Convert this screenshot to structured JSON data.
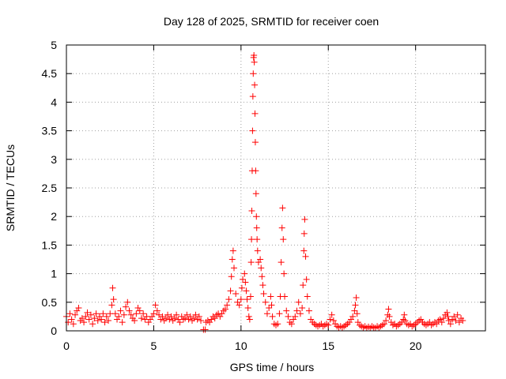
{
  "chart_data": {
    "type": "scatter",
    "title": "Day 128 of 2025, SRMTID for receiver coen",
    "xlabel": "GPS time / hours",
    "ylabel": "SRMTID / TECUs",
    "xlim": [
      0,
      24
    ],
    "ylim": [
      0,
      5
    ],
    "xticks": [
      0,
      5,
      10,
      15,
      20
    ],
    "xtick_labels": [
      "0",
      "5",
      "10",
      "15",
      "20"
    ],
    "yticks": [
      0,
      0.5,
      1,
      1.5,
      2,
      2.5,
      3,
      3.5,
      4,
      4.5,
      5
    ],
    "ytick_labels": [
      "0",
      "0.5",
      "1",
      "1.5",
      "2",
      "2.5",
      "3",
      "3.5",
      "4",
      "4.5",
      "5"
    ],
    "grid": true,
    "marker": "+",
    "series": [
      {
        "name": "SRMTID",
        "color": "#ff0000",
        "points": [
          [
            0.0,
            0.25
          ],
          [
            0.1,
            0.15
          ],
          [
            0.2,
            0.3
          ],
          [
            0.3,
            0.2
          ],
          [
            0.4,
            0.12
          ],
          [
            0.5,
            0.28
          ],
          [
            0.6,
            0.35
          ],
          [
            0.7,
            0.4
          ],
          [
            0.8,
            0.18
          ],
          [
            0.9,
            0.22
          ],
          [
            1.0,
            0.15
          ],
          [
            1.1,
            0.25
          ],
          [
            1.2,
            0.32
          ],
          [
            1.3,
            0.2
          ],
          [
            1.4,
            0.28
          ],
          [
            1.5,
            0.12
          ],
          [
            1.6,
            0.22
          ],
          [
            1.7,
            0.3
          ],
          [
            1.8,
            0.18
          ],
          [
            1.9,
            0.25
          ],
          [
            2.0,
            0.2
          ],
          [
            2.1,
            0.3
          ],
          [
            2.2,
            0.15
          ],
          [
            2.3,
            0.25
          ],
          [
            2.4,
            0.18
          ],
          [
            2.5,
            0.3
          ],
          [
            2.6,
            0.45
          ],
          [
            2.65,
            0.75
          ],
          [
            2.7,
            0.55
          ],
          [
            2.8,
            0.3
          ],
          [
            2.9,
            0.2
          ],
          [
            3.0,
            0.25
          ],
          [
            3.1,
            0.35
          ],
          [
            3.2,
            0.15
          ],
          [
            3.3,
            0.28
          ],
          [
            3.4,
            0.42
          ],
          [
            3.5,
            0.5
          ],
          [
            3.6,
            0.35
          ],
          [
            3.7,
            0.28
          ],
          [
            3.8,
            0.22
          ],
          [
            3.9,
            0.18
          ],
          [
            4.0,
            0.3
          ],
          [
            4.1,
            0.4
          ],
          [
            4.2,
            0.35
          ],
          [
            4.3,
            0.22
          ],
          [
            4.4,
            0.3
          ],
          [
            4.5,
            0.2
          ],
          [
            4.6,
            0.25
          ],
          [
            4.7,
            0.15
          ],
          [
            4.8,
            0.2
          ],
          [
            4.9,
            0.25
          ],
          [
            5.0,
            0.3
          ],
          [
            5.1,
            0.45
          ],
          [
            5.2,
            0.35
          ],
          [
            5.3,
            0.28
          ],
          [
            5.4,
            0.2
          ],
          [
            5.5,
            0.25
          ],
          [
            5.6,
            0.18
          ],
          [
            5.7,
            0.22
          ],
          [
            5.8,
            0.28
          ],
          [
            5.9,
            0.2
          ],
          [
            6.0,
            0.25
          ],
          [
            6.1,
            0.18
          ],
          [
            6.2,
            0.22
          ],
          [
            6.3,
            0.28
          ],
          [
            6.4,
            0.2
          ],
          [
            6.5,
            0.15
          ],
          [
            6.6,
            0.25
          ],
          [
            6.7,
            0.2
          ],
          [
            6.8,
            0.22
          ],
          [
            6.9,
            0.28
          ],
          [
            7.0,
            0.2
          ],
          [
            7.1,
            0.25
          ],
          [
            7.2,
            0.18
          ],
          [
            7.3,
            0.22
          ],
          [
            7.4,
            0.28
          ],
          [
            7.5,
            0.2
          ],
          [
            7.6,
            0.25
          ],
          [
            7.7,
            0.18
          ],
          [
            7.85,
            0.02
          ],
          [
            7.95,
            0.02
          ],
          [
            8.0,
            0.15
          ],
          [
            8.1,
            0.18
          ],
          [
            8.2,
            0.15
          ],
          [
            8.3,
            0.2
          ],
          [
            8.4,
            0.25
          ],
          [
            8.5,
            0.22
          ],
          [
            8.6,
            0.28
          ],
          [
            8.7,
            0.3
          ],
          [
            8.8,
            0.25
          ],
          [
            8.9,
            0.3
          ],
          [
            9.0,
            0.35
          ],
          [
            9.1,
            0.38
          ],
          [
            9.2,
            0.45
          ],
          [
            9.3,
            0.55
          ],
          [
            9.4,
            0.7
          ],
          [
            9.45,
            0.95
          ],
          [
            9.5,
            1.25
          ],
          [
            9.55,
            1.4
          ],
          [
            9.6,
            1.1
          ],
          [
            9.7,
            0.65
          ],
          [
            9.8,
            0.5
          ],
          [
            9.9,
            0.45
          ],
          [
            10.0,
            0.55
          ],
          [
            10.05,
            0.75
          ],
          [
            10.1,
            0.9
          ],
          [
            10.2,
            1.0
          ],
          [
            10.25,
            0.85
          ],
          [
            10.3,
            0.7
          ],
          [
            10.35,
            0.55
          ],
          [
            10.4,
            0.4
          ],
          [
            10.45,
            0.25
          ],
          [
            10.5,
            0.2
          ],
          [
            10.55,
            0.6
          ],
          [
            10.58,
            1.2
          ],
          [
            10.6,
            1.6
          ],
          [
            10.62,
            2.1
          ],
          [
            10.64,
            2.8
          ],
          [
            10.66,
            3.5
          ],
          [
            10.68,
            4.1
          ],
          [
            10.7,
            4.5
          ],
          [
            10.72,
            4.78
          ],
          [
            10.74,
            4.82
          ],
          [
            10.76,
            4.7
          ],
          [
            10.78,
            4.3
          ],
          [
            10.8,
            3.8
          ],
          [
            10.82,
            3.3
          ],
          [
            10.84,
            2.8
          ],
          [
            10.86,
            2.4
          ],
          [
            10.88,
            2.0
          ],
          [
            10.9,
            1.8
          ],
          [
            10.92,
            1.6
          ],
          [
            10.95,
            1.4
          ],
          [
            11.0,
            1.2
          ],
          [
            11.1,
            1.25
          ],
          [
            11.15,
            1.1
          ],
          [
            11.2,
            0.95
          ],
          [
            11.25,
            0.8
          ],
          [
            11.3,
            0.65
          ],
          [
            11.4,
            0.5
          ],
          [
            11.5,
            0.3
          ],
          [
            11.6,
            0.4
          ],
          [
            11.7,
            0.6
          ],
          [
            11.75,
            0.45
          ],
          [
            11.8,
            0.25
          ],
          [
            11.9,
            0.12
          ],
          [
            12.0,
            0.1
          ],
          [
            12.1,
            0.12
          ],
          [
            12.2,
            0.3
          ],
          [
            12.25,
            0.6
          ],
          [
            12.3,
            1.2
          ],
          [
            12.35,
            1.8
          ],
          [
            12.38,
            2.15
          ],
          [
            12.42,
            1.6
          ],
          [
            12.46,
            1.0
          ],
          [
            12.5,
            0.6
          ],
          [
            12.6,
            0.35
          ],
          [
            12.7,
            0.25
          ],
          [
            12.8,
            0.15
          ],
          [
            12.9,
            0.12
          ],
          [
            13.0,
            0.2
          ],
          [
            13.1,
            0.25
          ],
          [
            13.2,
            0.35
          ],
          [
            13.3,
            0.5
          ],
          [
            13.4,
            0.3
          ],
          [
            13.5,
            0.4
          ],
          [
            13.55,
            0.8
          ],
          [
            13.6,
            1.4
          ],
          [
            13.62,
            1.7
          ],
          [
            13.65,
            1.95
          ],
          [
            13.7,
            1.3
          ],
          [
            13.75,
            0.9
          ],
          [
            13.8,
            0.6
          ],
          [
            13.9,
            0.35
          ],
          [
            14.0,
            0.2
          ],
          [
            14.1,
            0.15
          ],
          [
            14.2,
            0.12
          ],
          [
            14.3,
            0.1
          ],
          [
            14.4,
            0.08
          ],
          [
            14.5,
            0.1
          ],
          [
            14.6,
            0.12
          ],
          [
            14.7,
            0.08
          ],
          [
            14.8,
            0.1
          ],
          [
            14.9,
            0.12
          ],
          [
            15.0,
            0.1
          ],
          [
            15.1,
            0.2
          ],
          [
            15.2,
            0.28
          ],
          [
            15.3,
            0.18
          ],
          [
            15.4,
            0.12
          ],
          [
            15.5,
            0.08
          ],
          [
            15.6,
            0.06
          ],
          [
            15.7,
            0.08
          ],
          [
            15.8,
            0.06
          ],
          [
            15.9,
            0.08
          ],
          [
            16.0,
            0.1
          ],
          [
            16.1,
            0.12
          ],
          [
            16.2,
            0.15
          ],
          [
            16.3,
            0.2
          ],
          [
            16.4,
            0.25
          ],
          [
            16.5,
            0.35
          ],
          [
            16.55,
            0.45
          ],
          [
            16.6,
            0.58
          ],
          [
            16.65,
            0.3
          ],
          [
            16.7,
            0.15
          ],
          [
            16.8,
            0.1
          ],
          [
            16.9,
            0.08
          ],
          [
            17.0,
            0.06
          ],
          [
            17.1,
            0.08
          ],
          [
            17.2,
            0.05
          ],
          [
            17.3,
            0.07
          ],
          [
            17.4,
            0.05
          ],
          [
            17.5,
            0.08
          ],
          [
            17.6,
            0.06
          ],
          [
            17.7,
            0.05
          ],
          [
            17.8,
            0.08
          ],
          [
            17.9,
            0.06
          ],
          [
            18.0,
            0.08
          ],
          [
            18.1,
            0.1
          ],
          [
            18.2,
            0.12
          ],
          [
            18.3,
            0.18
          ],
          [
            18.4,
            0.28
          ],
          [
            18.45,
            0.38
          ],
          [
            18.5,
            0.25
          ],
          [
            18.6,
            0.15
          ],
          [
            18.7,
            0.1
          ],
          [
            18.8,
            0.12
          ],
          [
            18.9,
            0.08
          ],
          [
            19.0,
            0.1
          ],
          [
            19.1,
            0.12
          ],
          [
            19.2,
            0.15
          ],
          [
            19.3,
            0.2
          ],
          [
            19.35,
            0.28
          ],
          [
            19.4,
            0.18
          ],
          [
            19.5,
            0.12
          ],
          [
            19.6,
            0.1
          ],
          [
            19.7,
            0.12
          ],
          [
            19.8,
            0.08
          ],
          [
            19.9,
            0.1
          ],
          [
            20.0,
            0.12
          ],
          [
            20.1,
            0.15
          ],
          [
            20.2,
            0.18
          ],
          [
            20.3,
            0.2
          ],
          [
            20.4,
            0.15
          ],
          [
            20.5,
            0.12
          ],
          [
            20.6,
            0.1
          ],
          [
            20.7,
            0.12
          ],
          [
            20.8,
            0.15
          ],
          [
            20.9,
            0.1
          ],
          [
            21.0,
            0.12
          ],
          [
            21.1,
            0.15
          ],
          [
            21.2,
            0.12
          ],
          [
            21.3,
            0.18
          ],
          [
            21.4,
            0.2
          ],
          [
            21.5,
            0.15
          ],
          [
            21.6,
            0.22
          ],
          [
            21.7,
            0.28
          ],
          [
            21.8,
            0.32
          ],
          [
            21.85,
            0.25
          ],
          [
            21.9,
            0.18
          ],
          [
            22.0,
            0.12
          ],
          [
            22.1,
            0.2
          ],
          [
            22.2,
            0.25
          ],
          [
            22.3,
            0.18
          ],
          [
            22.4,
            0.28
          ],
          [
            22.5,
            0.15
          ],
          [
            22.6,
            0.22
          ],
          [
            22.7,
            0.18
          ]
        ]
      }
    ]
  }
}
